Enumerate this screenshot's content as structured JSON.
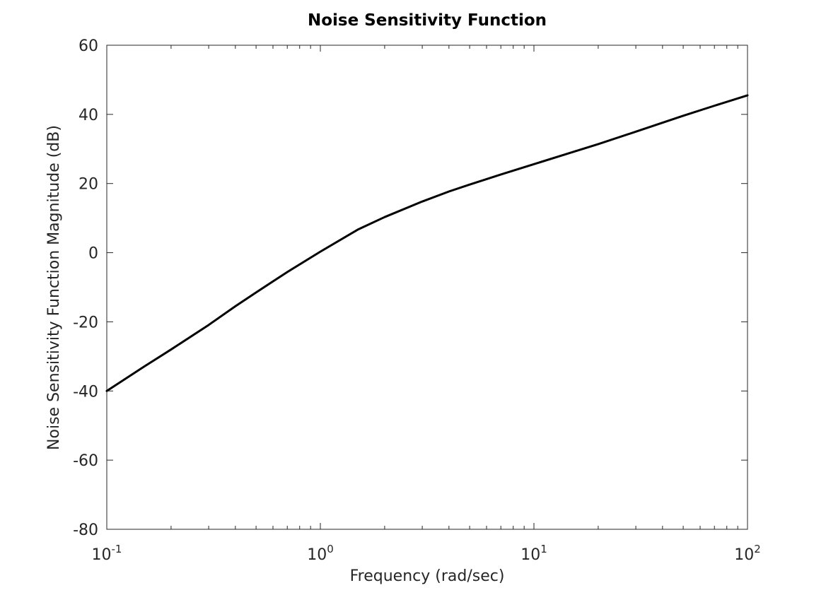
{
  "chart_data": {
    "type": "line",
    "title": "Noise Sensitivity Function",
    "xlabel": "Frequency (rad/sec)",
    "ylabel": "Noise Sensitivity Function Magnitude (dB)",
    "x_scale": "log",
    "xlim": [
      0.1,
      100
    ],
    "ylim": [
      -80,
      60
    ],
    "x_ticks": [
      {
        "base": "10",
        "exp": "-1"
      },
      {
        "base": "10",
        "exp": "0"
      },
      {
        "base": "10",
        "exp": "1"
      },
      {
        "base": "10",
        "exp": "2"
      }
    ],
    "y_ticks": [
      "60",
      "40",
      "20",
      "0",
      "-20",
      "-40",
      "-60",
      "-80"
    ],
    "grid": false,
    "series": [
      {
        "color": "#000000",
        "x": [
          0.1,
          0.15,
          0.2,
          0.3,
          0.4,
          0.5,
          0.7,
          1.0,
          1.5,
          2.0,
          3.0,
          4.0,
          5.0,
          7.0,
          10,
          15,
          20,
          30,
          50,
          70,
          100
        ],
        "y": [
          -40.0,
          -32.9,
          -28.0,
          -20.9,
          -15.5,
          -11.5,
          -5.6,
          0.3,
          6.7,
          10.3,
          14.8,
          17.7,
          19.7,
          22.6,
          25.6,
          29.0,
          31.4,
          35.0,
          39.6,
          42.5,
          45.5
        ]
      }
    ]
  }
}
